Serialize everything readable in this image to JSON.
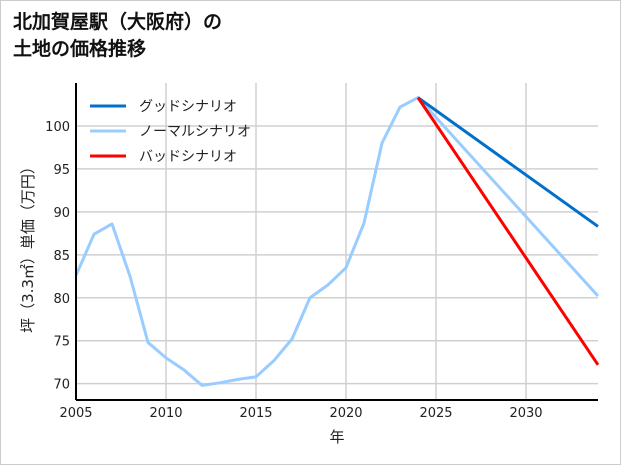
{
  "chart_data": {
    "type": "line",
    "title_lines": [
      "北加賀屋駅（大阪府）の",
      "土地の価格推移"
    ],
    "xlabel": "年",
    "ylabel": "坪（3.3㎡）単価（万円）",
    "xlim": [
      2005,
      2034
    ],
    "ylim": [
      68.1,
      105
    ],
    "xticks": [
      2005,
      2010,
      2015,
      2020,
      2025,
      2030
    ],
    "yticks": [
      70,
      75,
      80,
      85,
      90,
      95,
      100
    ],
    "grid": true,
    "legend": "top-left",
    "series": [
      {
        "name": "グッドシナリオ",
        "color": "#0070cc",
        "x": [
          2024,
          2034
        ],
        "y": [
          103.3,
          88.3
        ]
      },
      {
        "name": "ノーマルシナリオ",
        "color": "#99ccff",
        "x": [
          2005,
          2006,
          2007,
          2008,
          2009,
          2010,
          2011,
          2012,
          2013,
          2014,
          2015,
          2016,
          2017,
          2018,
          2019,
          2020,
          2021,
          2022,
          2023,
          2024,
          2034
        ],
        "y": [
          82.6,
          87.4,
          88.6,
          82.5,
          74.8,
          73,
          71.6,
          69.8,
          70.1,
          70.5,
          70.8,
          72.7,
          75.2,
          80,
          81.5,
          83.5,
          88.7,
          98,
          102.2,
          103.3,
          80.2
        ]
      },
      {
        "name": "バッドシナリオ",
        "color": "#ff0000",
        "x": [
          2024,
          2034
        ],
        "y": [
          103.3,
          72.2
        ]
      }
    ]
  }
}
